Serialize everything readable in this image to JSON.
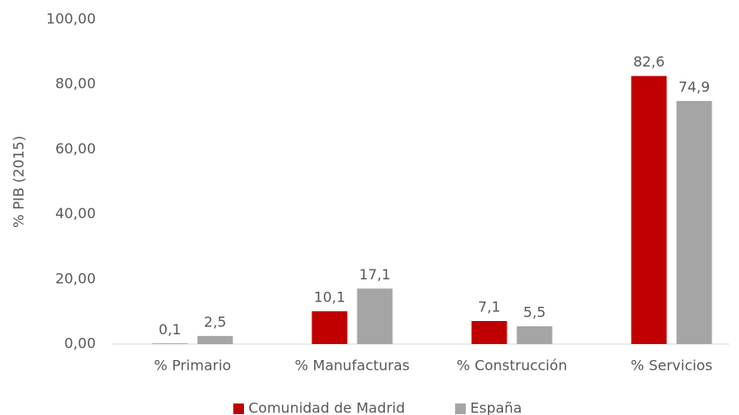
{
  "chart_data": {
    "type": "bar",
    "y_label": "% PIB (2015)",
    "categories": [
      "% Primario",
      "% Manufacturas",
      "% Construcción",
      "% Servicios"
    ],
    "series": [
      {
        "name": "Comunidad de Madrid",
        "color": "#c00000",
        "values": [
          0.1,
          10.1,
          7.1,
          82.6
        ],
        "value_labels": [
          "0,1",
          "10,1",
          "7,1",
          "82,6"
        ]
      },
      {
        "name": "España",
        "color": "#a5a5a5",
        "values": [
          2.5,
          17.1,
          5.5,
          74.9
        ],
        "value_labels": [
          "2,5",
          "17,1",
          "5,5",
          "74,9"
        ]
      }
    ],
    "ylim": [
      0,
      100
    ],
    "yticks": [
      {
        "value": 0,
        "label": "0,00"
      },
      {
        "value": 20,
        "label": "20,00"
      },
      {
        "value": 40,
        "label": "40,00"
      },
      {
        "value": 60,
        "label": "60,00"
      },
      {
        "value": 80,
        "label": "80,00"
      },
      {
        "value": 100,
        "label": "100,00"
      }
    ],
    "grid": false,
    "legend": "bottom"
  }
}
